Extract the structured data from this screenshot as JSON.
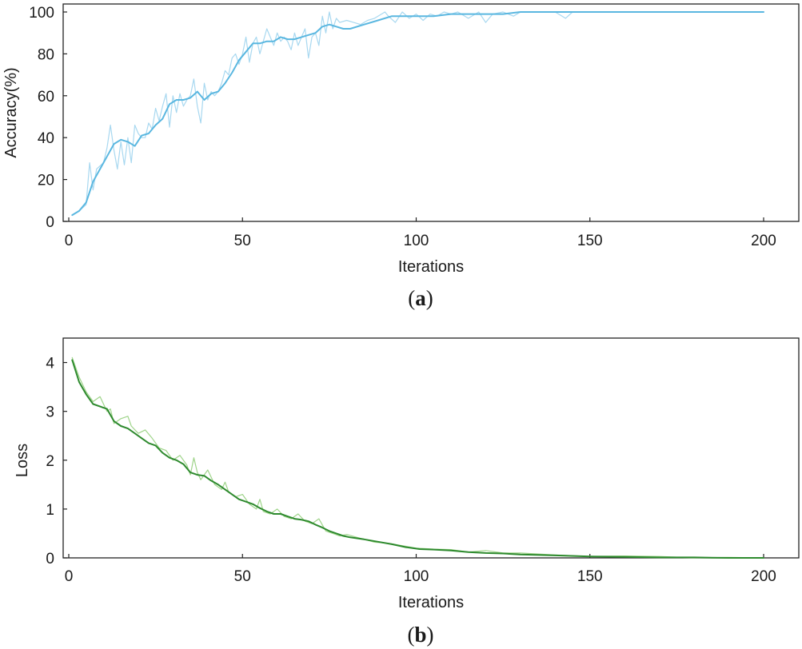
{
  "chart_data": [
    {
      "type": "line",
      "panel_label": "a",
      "title": "",
      "xlabel": "Iterations",
      "ylabel": "Accuracy(%)",
      "xlim": [
        0,
        200
      ],
      "ylim": [
        0,
        100
      ],
      "xticks": [
        0,
        50,
        100,
        150,
        200
      ],
      "yticks": [
        0,
        20,
        40,
        60,
        80,
        100
      ],
      "grid": false,
      "series": [
        {
          "role": "raw",
          "color": "#a8d8f0",
          "x": [
            1,
            3,
            5,
            6,
            7,
            8,
            10,
            11,
            12,
            13,
            14,
            15,
            16,
            17,
            18,
            19,
            20,
            21,
            22,
            23,
            24,
            25,
            26,
            27,
            28,
            29,
            30,
            31,
            32,
            33,
            34,
            35,
            36,
            37,
            38,
            39,
            40,
            41,
            42,
            43,
            44,
            45,
            46,
            47,
            48,
            49,
            50,
            51,
            52,
            53,
            54,
            55,
            56,
            57,
            58,
            59,
            60,
            61,
            62,
            63,
            64,
            65,
            66,
            67,
            68,
            69,
            70,
            71,
            72,
            73,
            74,
            75,
            76,
            77,
            78,
            80,
            82,
            84,
            86,
            88,
            90,
            91,
            92,
            94,
            96,
            98,
            100,
            102,
            104,
            106,
            108,
            110,
            112,
            115,
            118,
            120,
            122,
            125,
            128,
            130,
            135,
            140,
            143,
            145,
            148,
            150,
            160,
            170,
            180,
            190,
            200
          ],
          "y": [
            3,
            5,
            8,
            28,
            15,
            25,
            28,
            35,
            46,
            34,
            25,
            38,
            27,
            40,
            28,
            46,
            42,
            40,
            40,
            47,
            44,
            54,
            48,
            55,
            61,
            45,
            60,
            52,
            61,
            55,
            58,
            60,
            68,
            55,
            47,
            66,
            58,
            62,
            60,
            62,
            66,
            72,
            70,
            78,
            80,
            75,
            80,
            88,
            76,
            85,
            88,
            80,
            86,
            92,
            88,
            84,
            90,
            86,
            88,
            86,
            82,
            90,
            84,
            88,
            92,
            78,
            88,
            90,
            84,
            98,
            90,
            100,
            92,
            97,
            95,
            96,
            95,
            94,
            96,
            97,
            99,
            100,
            98,
            95,
            100,
            97,
            99,
            96,
            99,
            98,
            100,
            99,
            100,
            97,
            100,
            95,
            99,
            100,
            98,
            100,
            100,
            100,
            97,
            100,
            100,
            100,
            100,
            100,
            100,
            100,
            100
          ]
        },
        {
          "role": "smoothed",
          "color": "#5ab7e0",
          "x": [
            1,
            3,
            5,
            7,
            9,
            11,
            13,
            15,
            17,
            19,
            21,
            23,
            25,
            27,
            29,
            31,
            33,
            35,
            37,
            39,
            41,
            43,
            45,
            47,
            49,
            51,
            53,
            55,
            57,
            59,
            61,
            63,
            65,
            67,
            69,
            71,
            73,
            75,
            77,
            79,
            81,
            85,
            89,
            93,
            97,
            101,
            105,
            110,
            115,
            120,
            125,
            130,
            140,
            150,
            160,
            180,
            200
          ],
          "y": [
            3,
            5,
            9,
            19,
            25,
            31,
            37,
            39,
            38,
            36,
            41,
            42,
            46,
            49,
            56,
            58,
            58,
            59,
            62,
            58,
            61,
            62,
            66,
            71,
            77,
            81,
            85,
            85,
            86,
            86,
            88,
            87,
            87,
            88,
            89,
            90,
            93,
            94,
            93,
            92,
            92,
            94,
            96,
            98,
            98,
            98,
            98,
            99,
            99,
            99,
            99,
            100,
            100,
            100,
            100,
            100,
            100
          ]
        }
      ]
    },
    {
      "type": "line",
      "panel_label": "b",
      "title": "",
      "xlabel": "Iterations",
      "ylabel": "Loss",
      "xlim": [
        0,
        200
      ],
      "ylim": [
        0,
        4.5
      ],
      "xticks": [
        0,
        50,
        100,
        150,
        200
      ],
      "yticks": [
        0,
        1,
        2,
        3,
        4
      ],
      "grid": false,
      "series": [
        {
          "role": "raw",
          "color": "#9fd48a",
          "x": [
            1,
            3,
            5,
            7,
            9,
            11,
            12,
            13,
            15,
            17,
            18,
            20,
            22,
            24,
            26,
            28,
            30,
            32,
            34,
            35,
            36,
            37,
            38,
            40,
            42,
            44,
            45,
            46,
            48,
            50,
            52,
            54,
            55,
            56,
            58,
            60,
            62,
            64,
            66,
            68,
            70,
            72,
            74,
            76,
            78,
            80,
            84,
            88,
            92,
            96,
            100,
            105,
            110,
            115,
            120,
            125,
            130,
            140,
            150,
            160,
            170,
            180,
            190,
            200
          ],
          "y": [
            4.1,
            3.7,
            3.4,
            3.2,
            3.3,
            3.0,
            3.05,
            2.75,
            2.85,
            2.9,
            2.7,
            2.55,
            2.62,
            2.45,
            2.25,
            2.2,
            2.0,
            2.1,
            1.9,
            1.7,
            2.05,
            1.75,
            1.6,
            1.8,
            1.5,
            1.4,
            1.55,
            1.35,
            1.25,
            1.3,
            1.1,
            1.0,
            1.2,
            0.95,
            0.9,
            1.0,
            0.85,
            0.8,
            0.9,
            0.75,
            0.7,
            0.8,
            0.55,
            0.5,
            0.45,
            0.48,
            0.4,
            0.32,
            0.3,
            0.25,
            0.2,
            0.18,
            0.17,
            0.12,
            0.15,
            0.1,
            0.1,
            0.06,
            0.03,
            0.04,
            0.03,
            0.0,
            0.01,
            0.0
          ]
        },
        {
          "role": "smoothed",
          "color": "#2e8a2e",
          "x": [
            1,
            3,
            5,
            7,
            9,
            11,
            13,
            15,
            17,
            19,
            21,
            23,
            25,
            27,
            29,
            31,
            33,
            35,
            37,
            39,
            41,
            43,
            45,
            47,
            49,
            51,
            53,
            55,
            57,
            59,
            61,
            63,
            65,
            67,
            69,
            71,
            73,
            75,
            77,
            79,
            81,
            85,
            89,
            93,
            97,
            101,
            105,
            110,
            115,
            120,
            125,
            130,
            140,
            150,
            160,
            170,
            180,
            190,
            200
          ],
          "y": [
            4.05,
            3.6,
            3.35,
            3.15,
            3.1,
            3.05,
            2.8,
            2.7,
            2.65,
            2.55,
            2.45,
            2.35,
            2.3,
            2.15,
            2.05,
            2.0,
            1.92,
            1.75,
            1.7,
            1.68,
            1.58,
            1.5,
            1.4,
            1.3,
            1.2,
            1.15,
            1.1,
            1.02,
            0.95,
            0.9,
            0.9,
            0.85,
            0.8,
            0.78,
            0.75,
            0.68,
            0.62,
            0.55,
            0.5,
            0.45,
            0.42,
            0.38,
            0.33,
            0.28,
            0.22,
            0.18,
            0.17,
            0.15,
            0.12,
            0.1,
            0.09,
            0.07,
            0.05,
            0.03,
            0.02,
            0.01,
            0.01,
            0.0,
            0.0
          ]
        }
      ]
    }
  ]
}
